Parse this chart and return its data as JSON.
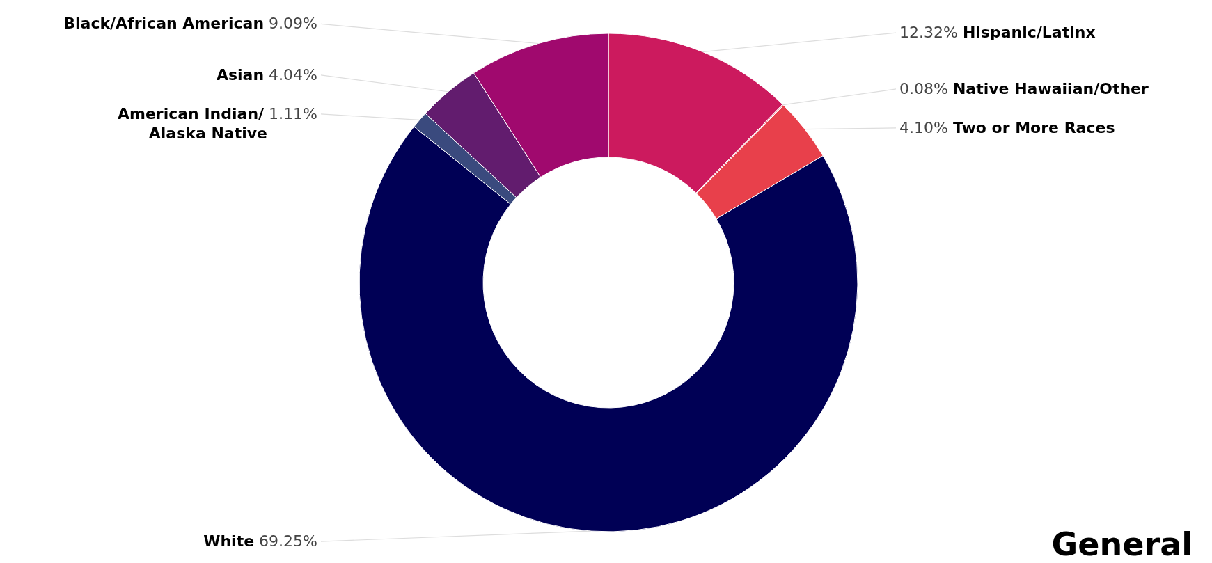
{
  "chart_data": {
    "type": "donut",
    "categories": [
      "Hispanic/Latinx",
      "Native Hawaiian/Other",
      "Two or More Races",
      "White",
      "American Indian/ Alaska Native",
      "Asian",
      "Black/African American"
    ],
    "values": [
      12.32,
      0.08,
      4.1,
      69.25,
      1.11,
      4.04,
      9.09
    ],
    "colors": [
      "#cc1a5e",
      "#f2a0a8",
      "#e8404b",
      "#000055",
      "#3a4a7e",
      "#621c6e",
      "#a0096e"
    ],
    "value_labels": [
      "12.32%",
      "0.08%",
      "4.10%",
      "69.25%",
      "1.11%",
      "4.04%",
      "9.09%"
    ],
    "annotations": [
      "General"
    ]
  }
}
